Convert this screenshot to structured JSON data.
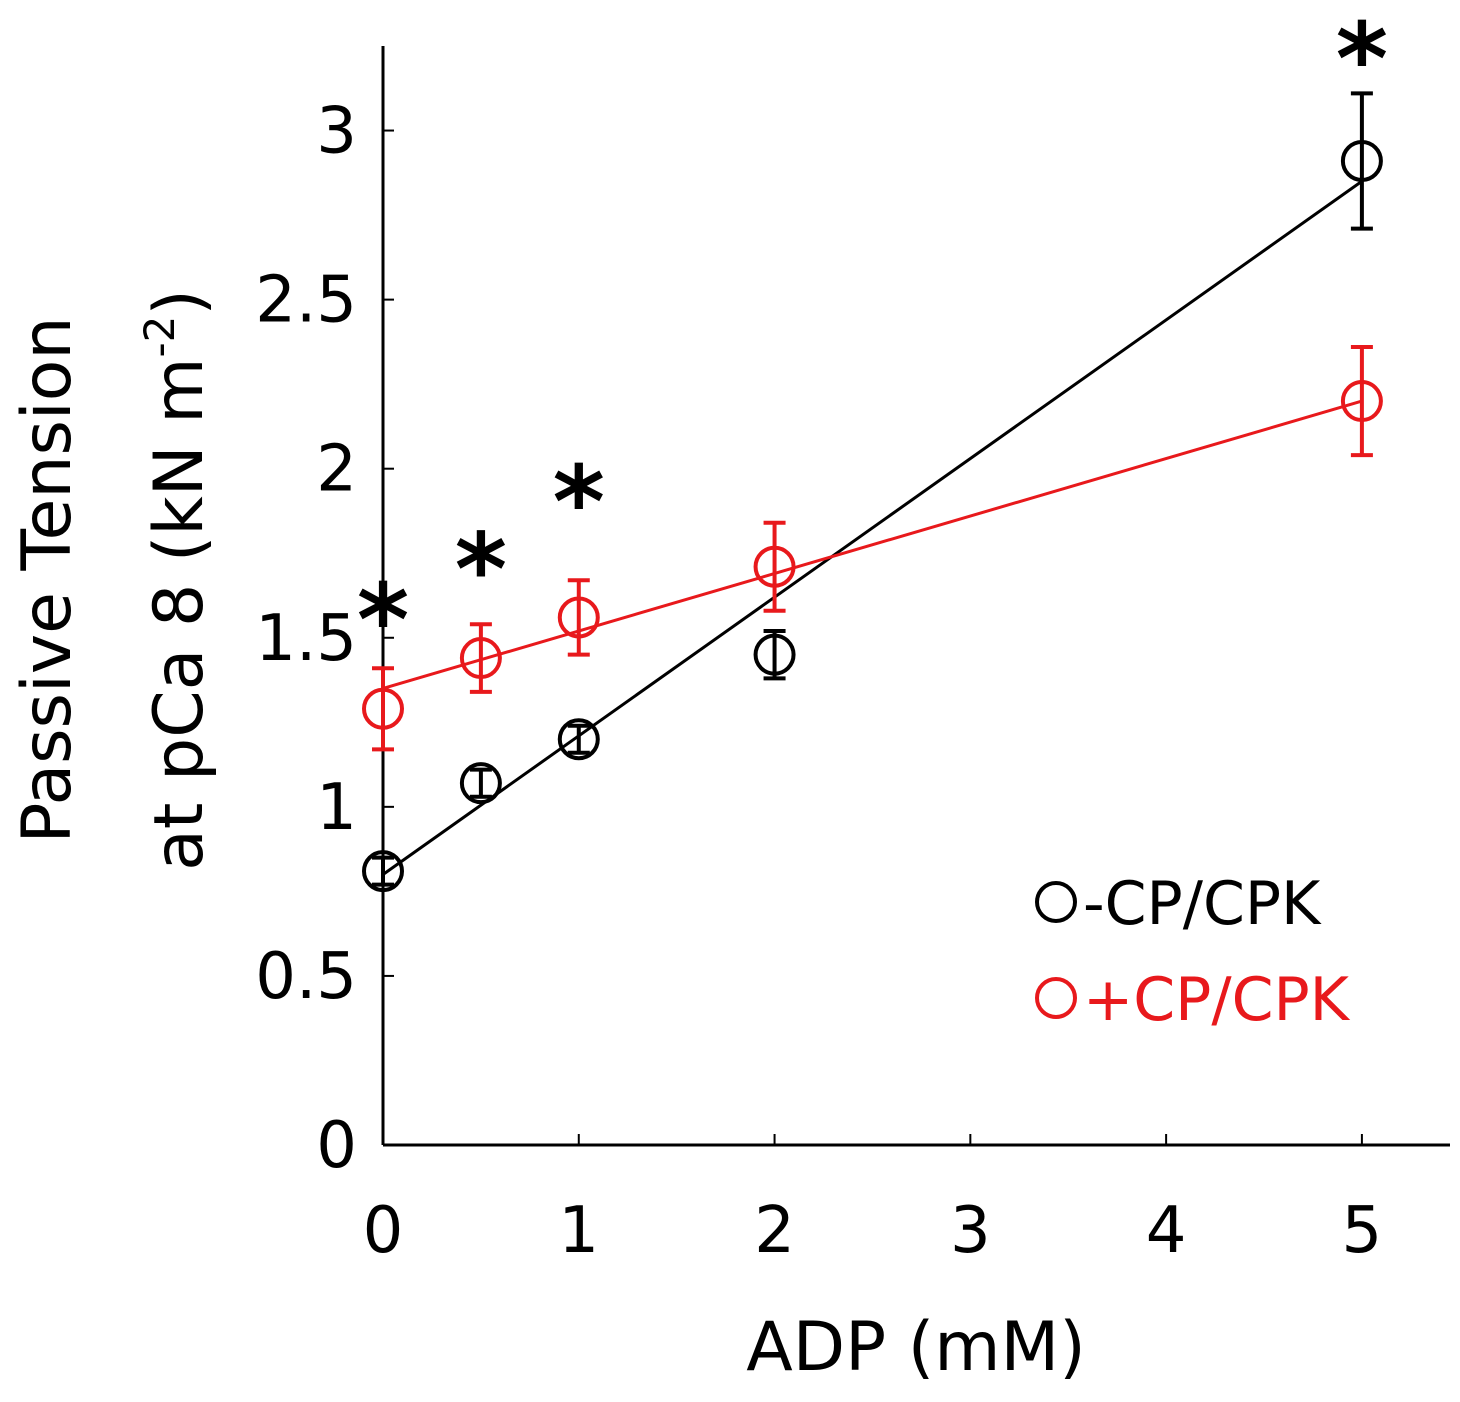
{
  "chart_data": {
    "type": "scatter",
    "xlabel": "ADP (mM)",
    "ylabel_line1": "Passive Tension",
    "ylabel_line2_prefix": "at pCa 8 (kN m",
    "ylabel_line2_sup": "-2",
    "ylabel_line2_suffix": ")",
    "xlim": [
      0,
      5.45
    ],
    "ylim": [
      0,
      3.25
    ],
    "xticks": [
      0,
      1,
      2,
      3,
      4,
      5
    ],
    "xtick_labels": [
      "0",
      "1",
      "2",
      "3",
      "4",
      "5"
    ],
    "yticks": [
      0,
      0.5,
      1,
      1.5,
      2,
      2.5,
      3
    ],
    "ytick_labels": [
      "0",
      "0.5",
      "1",
      "1.5",
      "2",
      "2.5",
      "3"
    ],
    "grid": false,
    "legend_position": "bottom-right",
    "series": [
      {
        "name": "-CP/CPK",
        "color": "#000000",
        "x": [
          0,
          0.5,
          1,
          2,
          5
        ],
        "y": [
          0.81,
          1.07,
          1.2,
          1.45,
          2.91
        ],
        "err": [
          0.04,
          0.04,
          0.04,
          0.07,
          0.2
        ],
        "fit_line": {
          "x": [
            0,
            5
          ],
          "y": [
            0.8,
            2.85
          ]
        }
      },
      {
        "name": "+CP/CPK",
        "color": "#e8191c",
        "x": [
          0,
          0.5,
          1,
          2,
          5
        ],
        "y": [
          1.29,
          1.44,
          1.56,
          1.71,
          2.2
        ],
        "err": [
          0.12,
          0.1,
          0.11,
          0.13,
          0.16
        ],
        "fit_line": {
          "x": [
            0,
            5
          ],
          "y": [
            1.35,
            2.2
          ]
        }
      }
    ],
    "annotations": [
      {
        "text": "*",
        "x": 0,
        "y": 1.62
      },
      {
        "text": "*",
        "x": 0.5,
        "y": 1.77
      },
      {
        "text": "*",
        "x": 1,
        "y": 1.97
      },
      {
        "text": "*",
        "x": 5,
        "y": 3.28
      }
    ]
  }
}
